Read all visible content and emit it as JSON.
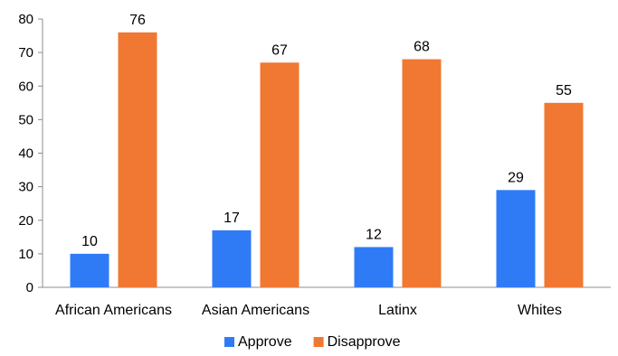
{
  "chart_data": {
    "type": "bar",
    "title": "",
    "xlabel": "",
    "ylabel": "",
    "categories": [
      "African Americans",
      "Asian Americans",
      "Latinx",
      "Whites"
    ],
    "series": [
      {
        "name": "Approve",
        "color": "#2f7bf5",
        "values": [
          10,
          17,
          12,
          29
        ]
      },
      {
        "name": "Disapprove",
        "color": "#f07832",
        "values": [
          76,
          67,
          68,
          55
        ]
      }
    ],
    "ylim": [
      0,
      80
    ],
    "yticks": [
      "0",
      "10",
      "20",
      "30",
      "40",
      "50",
      "60",
      "70",
      "80"
    ],
    "grid": false,
    "legend_position": "bottom"
  }
}
